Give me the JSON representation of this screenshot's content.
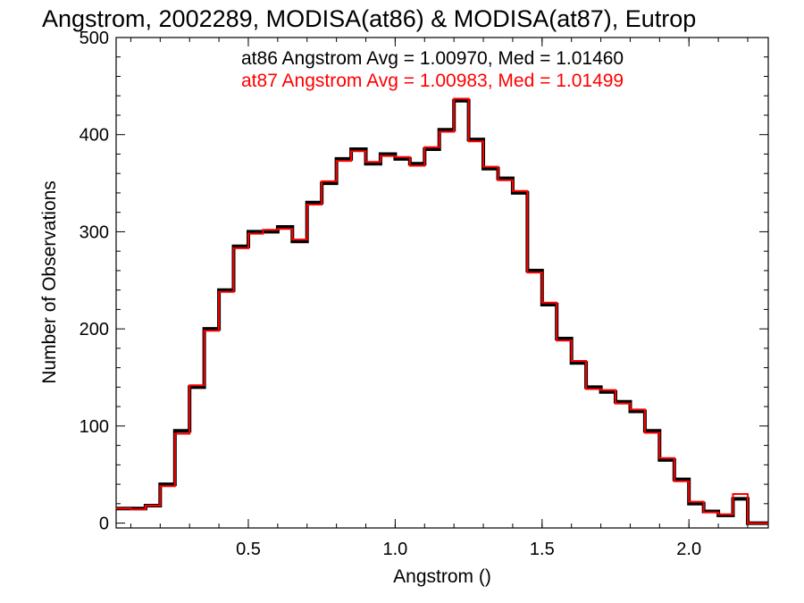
{
  "chart_data": {
    "type": "line",
    "title": "Angstrom, 2002289, MODISA(at86) & MODISA(at87), Eutrop",
    "xlabel": "Angstrom ()",
    "ylabel": "Number of Observations",
    "xlim": [
      0.05,
      2.27
    ],
    "ylim": [
      -5,
      500
    ],
    "xticks": [
      0.5,
      1.0,
      1.5,
      2.0
    ],
    "xtick_labels": [
      "0.5",
      "1.0",
      "1.5",
      "2.0"
    ],
    "yticks": [
      0,
      100,
      200,
      300,
      400,
      500
    ],
    "ytick_labels": [
      "0",
      "100",
      "200",
      "300",
      "400",
      "500"
    ],
    "grid": false,
    "legend_position": "top-right",
    "annotations": [
      "at86 Angstrom Avg = 1.00970, Med = 1.01460",
      "at87 Angstrom Avg = 1.00983, Med = 1.01499"
    ],
    "step": true,
    "colors": {
      "at86": "#000000",
      "at87": "#ff0000"
    },
    "x": [
      0.05,
      0.1,
      0.15,
      0.2,
      0.25,
      0.3,
      0.35,
      0.4,
      0.45,
      0.5,
      0.55,
      0.6,
      0.65,
      0.7,
      0.75,
      0.8,
      0.85,
      0.9,
      0.95,
      1.0,
      1.05,
      1.1,
      1.15,
      1.2,
      1.25,
      1.3,
      1.35,
      1.4,
      1.45,
      1.5,
      1.55,
      1.6,
      1.65,
      1.7,
      1.75,
      1.8,
      1.85,
      1.9,
      1.95,
      2.0,
      2.05,
      2.1,
      2.15,
      2.2,
      2.25
    ],
    "series": [
      {
        "values": [
          15,
          15,
          18,
          40,
          95,
          140,
          200,
          240,
          285,
          300,
          300,
          305,
          290,
          330,
          350,
          375,
          385,
          370,
          380,
          375,
          370,
          385,
          405,
          435,
          395,
          365,
          355,
          340,
          260,
          225,
          190,
          165,
          140,
          135,
          125,
          115,
          95,
          65,
          45,
          20,
          12,
          8,
          25,
          0,
          0
        ]
      },
      {
        "values": [
          15,
          14,
          18,
          38,
          92,
          142,
          198,
          238,
          283,
          298,
          302,
          303,
          292,
          328,
          352,
          373,
          383,
          372,
          378,
          377,
          368,
          387,
          403,
          437,
          393,
          367,
          353,
          342,
          258,
          227,
          188,
          167,
          138,
          137,
          123,
          117,
          93,
          67,
          43,
          22,
          11,
          9,
          30,
          0,
          0
        ]
      }
    ]
  }
}
